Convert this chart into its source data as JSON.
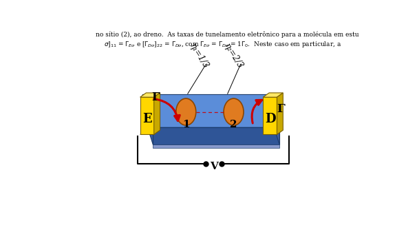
{
  "bg_color": "#ffffff",
  "platform_top_color": "#5b8dd9",
  "platform_front_color": "#2f5597",
  "platform_left_color": "#3a6ab5",
  "platform_right_color": "#3a6ab5",
  "electrode_face_color": "#ffd700",
  "electrode_side_color": "#c8a800",
  "electrode_top_color": "#ffe866",
  "electrode_dark_color": "#a07800",
  "sphere_color": "#e07b20",
  "sphere_edge_color": "#8b4500",
  "arrow_color": "#cc0000",
  "line_color": "#cc0000",
  "label_E": "E",
  "label_D": "D",
  "label_Gamma_left": "Γ",
  "label_Gamma_right": "Γ",
  "label_1": "1",
  "label_2": "2",
  "label_eta1": "η₁=1/3",
  "label_eta2": "η₂=2/3",
  "label_V": "V",
  "figsize": [
    6.06,
    3.27
  ],
  "dpi": 100
}
